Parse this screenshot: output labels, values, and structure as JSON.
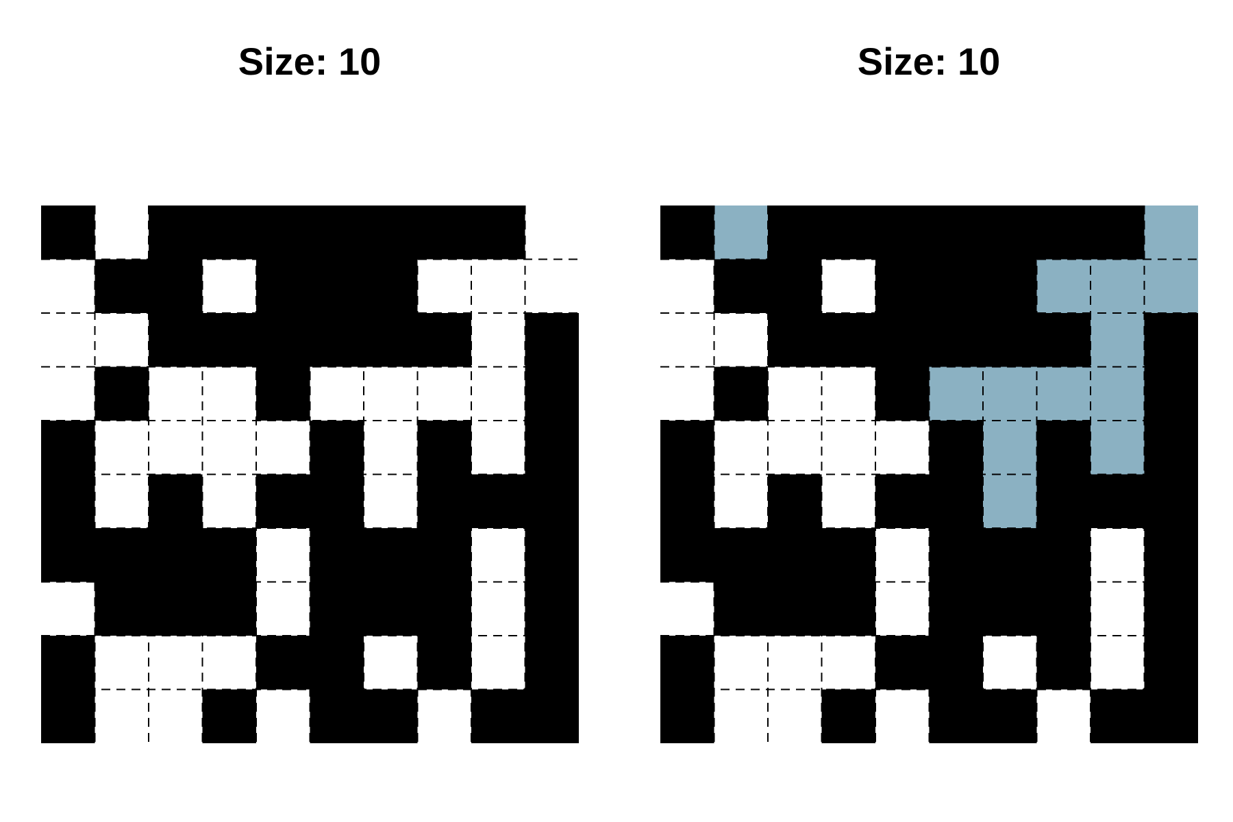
{
  "panels": [
    {
      "title": "Size: 10",
      "grid": [
        [
          1,
          0,
          1,
          1,
          1,
          1,
          1,
          1,
          1,
          0
        ],
        [
          0,
          1,
          1,
          0,
          1,
          1,
          1,
          0,
          0,
          0
        ],
        [
          0,
          0,
          1,
          1,
          1,
          1,
          1,
          1,
          0,
          1
        ],
        [
          0,
          1,
          0,
          0,
          1,
          0,
          0,
          0,
          0,
          1
        ],
        [
          1,
          0,
          0,
          0,
          0,
          1,
          0,
          1,
          0,
          1
        ],
        [
          1,
          0,
          1,
          0,
          1,
          1,
          0,
          1,
          1,
          1
        ],
        [
          1,
          1,
          1,
          1,
          0,
          1,
          1,
          1,
          0,
          1
        ],
        [
          0,
          1,
          1,
          1,
          0,
          1,
          1,
          1,
          0,
          1
        ],
        [
          1,
          0,
          0,
          0,
          1,
          1,
          0,
          1,
          0,
          1
        ],
        [
          1,
          0,
          0,
          1,
          0,
          1,
          1,
          0,
          1,
          1
        ]
      ],
      "highlight": []
    },
    {
      "title": "Size: 10",
      "grid": [
        [
          1,
          0,
          1,
          1,
          1,
          1,
          1,
          1,
          1,
          0
        ],
        [
          0,
          1,
          1,
          0,
          1,
          1,
          1,
          0,
          0,
          0
        ],
        [
          0,
          0,
          1,
          1,
          1,
          1,
          1,
          1,
          0,
          1
        ],
        [
          0,
          1,
          0,
          0,
          1,
          0,
          0,
          0,
          0,
          1
        ],
        [
          1,
          0,
          0,
          0,
          0,
          1,
          0,
          1,
          0,
          1
        ],
        [
          1,
          0,
          1,
          0,
          1,
          1,
          0,
          1,
          1,
          1
        ],
        [
          1,
          1,
          1,
          1,
          0,
          1,
          1,
          1,
          0,
          1
        ],
        [
          0,
          1,
          1,
          1,
          0,
          1,
          1,
          1,
          0,
          1
        ],
        [
          1,
          0,
          0,
          0,
          1,
          1,
          0,
          1,
          0,
          1
        ],
        [
          1,
          0,
          0,
          1,
          0,
          1,
          1,
          0,
          1,
          1
        ]
      ],
      "highlight": [
        [
          0,
          1
        ],
        [
          0,
          9
        ],
        [
          1,
          7
        ],
        [
          1,
          8
        ],
        [
          1,
          9
        ],
        [
          2,
          8
        ],
        [
          3,
          5
        ],
        [
          3,
          6
        ],
        [
          3,
          7
        ],
        [
          3,
          8
        ],
        [
          4,
          6
        ],
        [
          4,
          8
        ],
        [
          5,
          6
        ]
      ]
    }
  ],
  "colors": {
    "filled": "#000000",
    "empty": "#ffffff",
    "highlight": "#8bb1c2",
    "dash": "#000000"
  }
}
